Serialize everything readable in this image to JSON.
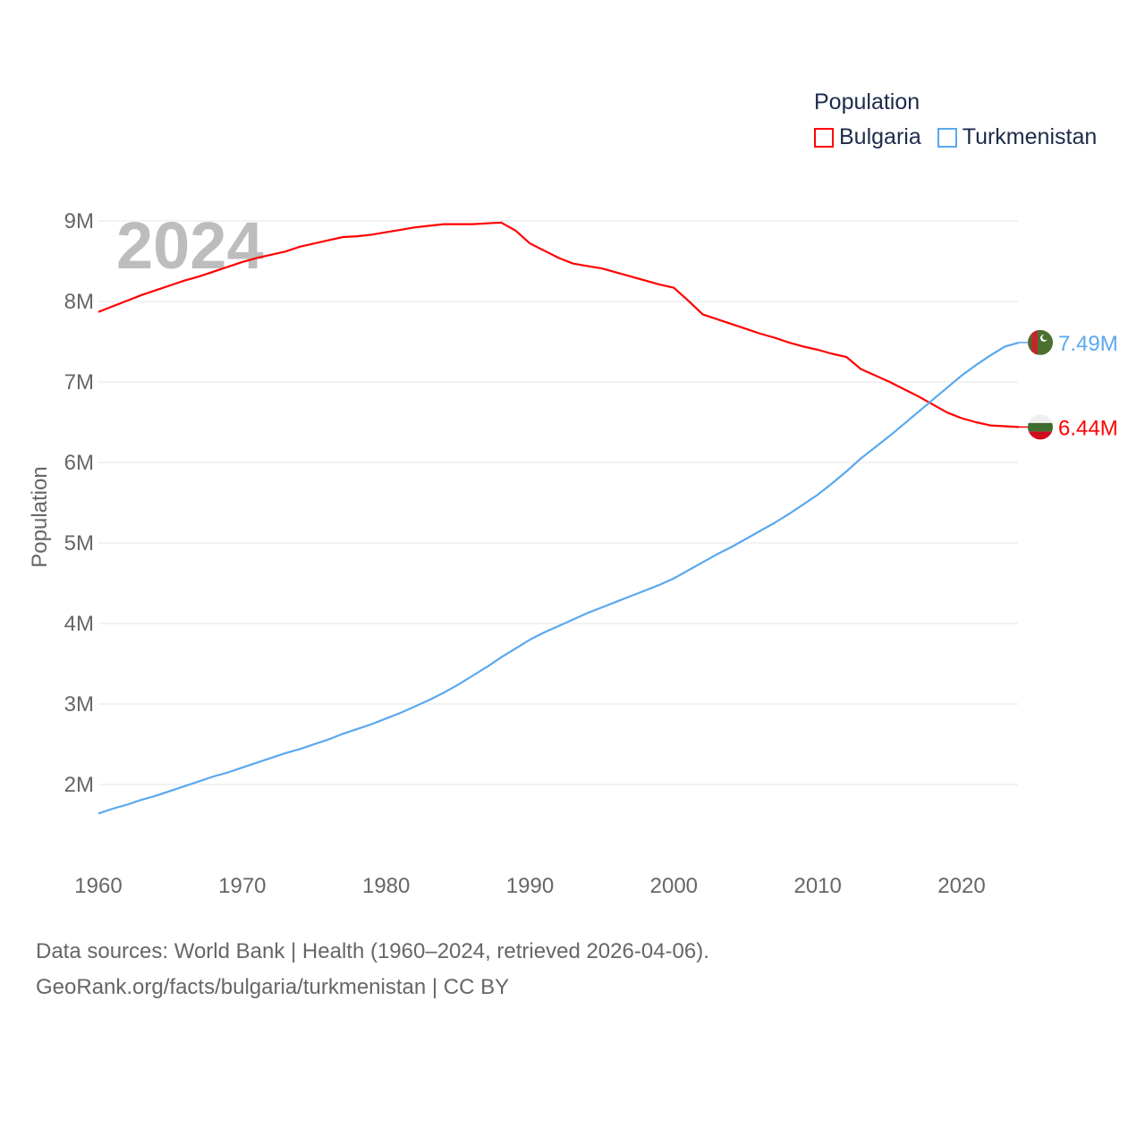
{
  "chart_data": {
    "type": "line",
    "title": "Population",
    "year_label": "2024",
    "xlabel": "",
    "ylabel": "Population",
    "xlim": [
      1960,
      2024
    ],
    "ylim": [
      1300000,
      9300000
    ],
    "x_ticks": [
      "1960",
      "1970",
      "1980",
      "1990",
      "2000",
      "2010",
      "2020"
    ],
    "y_ticks": [
      {
        "value": 2,
        "label": "2M"
      },
      {
        "value": 3,
        "label": "3M"
      },
      {
        "value": 4,
        "label": "4M"
      },
      {
        "value": 5,
        "label": "5M"
      },
      {
        "value": 6,
        "label": "6M"
      },
      {
        "value": 7,
        "label": "7M"
      },
      {
        "value": 8,
        "label": "8M"
      },
      {
        "value": 9,
        "label": "9M"
      }
    ],
    "grid": true,
    "legend_position": "top-right",
    "x": [
      1960,
      1961,
      1962,
      1963,
      1964,
      1965,
      1966,
      1967,
      1968,
      1969,
      1970,
      1971,
      1972,
      1973,
      1974,
      1975,
      1976,
      1977,
      1978,
      1979,
      1980,
      1981,
      1982,
      1983,
      1984,
      1985,
      1986,
      1987,
      1988,
      1989,
      1990,
      1991,
      1992,
      1993,
      1994,
      1995,
      1996,
      1997,
      1998,
      1999,
      2000,
      2001,
      2002,
      2003,
      2004,
      2005,
      2006,
      2007,
      2008,
      2009,
      2010,
      2011,
      2012,
      2013,
      2014,
      2015,
      2016,
      2017,
      2018,
      2019,
      2020,
      2021,
      2022,
      2023,
      2024
    ],
    "series": [
      {
        "name": "Bulgaria",
        "color": "#ff0000",
        "end_label": "6.44M",
        "values_millions": [
          7.87,
          7.94,
          8.01,
          8.08,
          8.14,
          8.2,
          8.26,
          8.31,
          8.37,
          8.43,
          8.49,
          8.54,
          8.58,
          8.62,
          8.68,
          8.72,
          8.76,
          8.8,
          8.81,
          8.83,
          8.86,
          8.89,
          8.92,
          8.94,
          8.96,
          8.96,
          8.96,
          8.97,
          8.98,
          8.88,
          8.72,
          8.63,
          8.54,
          8.47,
          8.44,
          8.41,
          8.36,
          8.31,
          8.26,
          8.21,
          8.17,
          8.01,
          7.84,
          7.78,
          7.72,
          7.66,
          7.6,
          7.55,
          7.49,
          7.44,
          7.4,
          7.35,
          7.31,
          7.16,
          7.08,
          7.0,
          6.91,
          6.82,
          6.72,
          6.62,
          6.55,
          6.5,
          6.46,
          6.45,
          6.44
        ]
      },
      {
        "name": "Turkmenistan",
        "color": "#5aa8ee",
        "end_label": "7.49M",
        "values_millions": [
          1.64,
          1.7,
          1.75,
          1.81,
          1.86,
          1.92,
          1.98,
          2.04,
          2.1,
          2.15,
          2.21,
          2.27,
          2.33,
          2.39,
          2.44,
          2.5,
          2.56,
          2.63,
          2.69,
          2.75,
          2.82,
          2.89,
          2.97,
          3.05,
          3.14,
          3.24,
          3.35,
          3.46,
          3.58,
          3.69,
          3.8,
          3.89,
          3.97,
          4.05,
          4.13,
          4.2,
          4.27,
          4.34,
          4.41,
          4.48,
          4.56,
          4.66,
          4.76,
          4.86,
          4.95,
          5.05,
          5.15,
          5.25,
          5.36,
          5.48,
          5.6,
          5.74,
          5.89,
          6.05,
          6.19,
          6.33,
          6.48,
          6.63,
          6.78,
          6.93,
          7.08,
          7.21,
          7.33,
          7.44,
          7.49
        ]
      }
    ]
  },
  "legend": {
    "title": "Population",
    "items": [
      "Bulgaria",
      "Turkmenistan"
    ]
  },
  "footer": {
    "line1": "Data sources: World Bank | Health (1960–2024, retrieved 2026-04-06).",
    "line2": "GeoRank.org/facts/bulgaria/turkmenistan | CC BY"
  }
}
